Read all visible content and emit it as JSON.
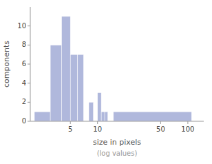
{
  "chart_data": {
    "type": "histogram",
    "xlabel": "size in pixels",
    "subtitle": "(log values)",
    "ylabel": "components",
    "bins": [
      2,
      3,
      4,
      5,
      6,
      7,
      8,
      9,
      10,
      11,
      12,
      13,
      14,
      15,
      110,
      120
    ],
    "values": [
      1,
      8,
      11,
      7,
      7,
      0,
      2,
      0,
      3,
      1,
      1,
      0,
      0,
      1,
      0
    ],
    "color": "#b0b8dc",
    "log": "x",
    "xlim": [
      1.8,
      150
    ],
    "ylim": [
      0,
      12
    ],
    "xticks": [
      5,
      10,
      50,
      100
    ],
    "yticks": [
      0,
      2,
      4,
      6,
      8,
      10
    ],
    "grid": false
  }
}
